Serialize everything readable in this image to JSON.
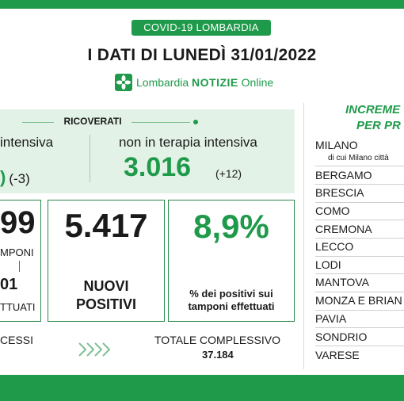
{
  "header": {
    "badge": "COVID-19 LOMBARDIA",
    "title": "I DATI DI LUNEDÌ 31/01/2022",
    "brand_lombardia": "Lombardia",
    "brand_notizie": "NOTIZIE",
    "brand_online": "Online"
  },
  "hospital": {
    "label": "RICOVERATI",
    "intensive_label": "intensiva",
    "intensive_delta": "(-3)",
    "non_intensive_label": "non in terapia intensiva",
    "non_intensive_value": "3.016",
    "non_intensive_delta": "(+12)"
  },
  "tests": {
    "value_partial": "99",
    "label_partial": "MPONI",
    "sub_value_partial": "01",
    "sub_label_partial": "TTUATI"
  },
  "new_positives": {
    "value": "5.417",
    "label_line1": "NUOVI",
    "label_line2": "POSITIVI"
  },
  "positivity": {
    "value": "8,9%",
    "label_line1": "% dei positivi sui",
    "label_line2": "tamponi effettuati"
  },
  "deaths": {
    "label_partial": "CESSI"
  },
  "total": {
    "label": "TOTALE COMPLESSIVO",
    "value": "37.184"
  },
  "provinces": {
    "heading_line1": "INCREME",
    "heading_line2": "PER PR",
    "items": [
      {
        "name": "MILANO",
        "note": "di cui Milano città"
      },
      {
        "name": "BERGAMO"
      },
      {
        "name": "BRESCIA"
      },
      {
        "name": "COMO"
      },
      {
        "name": "CREMONA"
      },
      {
        "name": "LECCO"
      },
      {
        "name": "LODI"
      },
      {
        "name": "MANTOVA"
      },
      {
        "name": "MONZA E BRIAN"
      },
      {
        "name": "PAVIA"
      },
      {
        "name": "SONDRIO"
      },
      {
        "name": "VARESE"
      }
    ]
  },
  "colors": {
    "accent": "#1f9a4a",
    "panel": "#e3f2e6"
  },
  "icons": {
    "logo": "plant-logo-icon",
    "arrows": "double-chevron-icons"
  }
}
